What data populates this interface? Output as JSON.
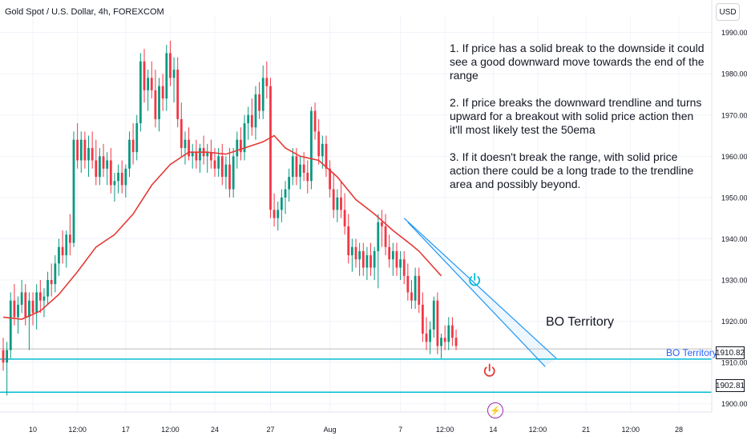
{
  "header": {
    "title": "Gold Spot / U.S. Dollar, 4h, FOREXCOM",
    "currency": "USD"
  },
  "notes": [
    "1. If price has a solid break to the downside it could see a good downward move towards the end of the range",
    "2. If price breaks the downward trendline and turns upward for a breakout with solid price action then it'll most likely test the 50ema",
    "3. If it doesn't break the range, with solid price action there could be a long trade to the trendline area and possibly beyond."
  ],
  "annotations": {
    "bo_territory_text": "BO Territory",
    "bo_line_label": "BO Territory",
    "bo_line_price": "1910.82",
    "lower_line_price": "1902.81"
  },
  "icons": [
    "power-icon",
    "power-icon",
    "lightning-icon"
  ],
  "chart_data": {
    "type": "candlestick",
    "symbol": "XAUUSD",
    "timeframe": "4h",
    "y_ticks": [
      1900,
      1910,
      1920,
      1930,
      1940,
      1950,
      1960,
      1970,
      1980,
      1990
    ],
    "y_tick_labels": [
      "1900.00",
      "1910.00",
      "1920.00",
      "1930.00",
      "1940.00",
      "1950.00",
      "1960.00",
      "1970.00",
      "1980.00",
      "1990.00"
    ],
    "ylim": [
      1898,
      1994
    ],
    "x_ticks": [
      {
        "label": "10",
        "bar": 8
      },
      {
        "label": "12:00",
        "bar": 20
      },
      {
        "label": "17",
        "bar": 33
      },
      {
        "label": "12:00",
        "bar": 45
      },
      {
        "label": "24",
        "bar": 57
      },
      {
        "label": "27",
        "bar": 72
      },
      {
        "label": "Aug",
        "bar": 88
      },
      {
        "label": "7",
        "bar": 107
      },
      {
        "label": "12:00",
        "bar": 119
      },
      {
        "label": "14",
        "bar": 132
      },
      {
        "label": "12:00",
        "bar": 144
      },
      {
        "label": "21",
        "bar": 157
      },
      {
        "label": "12:00",
        "bar": 169
      },
      {
        "label": "28",
        "bar": 182
      }
    ],
    "xlim_bars": [
      0,
      190
    ],
    "candles": [
      {
        "o": 1913,
        "h": 1916,
        "l": 1908,
        "c": 1910
      },
      {
        "o": 1910,
        "h": 1915,
        "l": 1902,
        "c": 1913
      },
      {
        "o": 1913,
        "h": 1927,
        "l": 1911,
        "c": 1925
      },
      {
        "o": 1925,
        "h": 1929,
        "l": 1919,
        "c": 1921
      },
      {
        "o": 1921,
        "h": 1926,
        "l": 1917,
        "c": 1924
      },
      {
        "o": 1924,
        "h": 1930,
        "l": 1922,
        "c": 1927
      },
      {
        "o": 1927,
        "h": 1929,
        "l": 1919,
        "c": 1921
      },
      {
        "o": 1921,
        "h": 1927,
        "l": 1913,
        "c": 1925
      },
      {
        "o": 1925,
        "h": 1927,
        "l": 1919,
        "c": 1922
      },
      {
        "o": 1922,
        "h": 1929,
        "l": 1918,
        "c": 1927
      },
      {
        "o": 1927,
        "h": 1930,
        "l": 1922,
        "c": 1925
      },
      {
        "o": 1925,
        "h": 1928,
        "l": 1921,
        "c": 1926
      },
      {
        "o": 1926,
        "h": 1932,
        "l": 1924,
        "c": 1930
      },
      {
        "o": 1930,
        "h": 1934,
        "l": 1926,
        "c": 1929
      },
      {
        "o": 1929,
        "h": 1936,
        "l": 1927,
        "c": 1934
      },
      {
        "o": 1934,
        "h": 1940,
        "l": 1931,
        "c": 1938
      },
      {
        "o": 1938,
        "h": 1942,
        "l": 1934,
        "c": 1936
      },
      {
        "o": 1936,
        "h": 1942,
        "l": 1933,
        "c": 1941
      },
      {
        "o": 1941,
        "h": 1946,
        "l": 1936,
        "c": 1939
      },
      {
        "o": 1939,
        "h": 1966,
        "l": 1938,
        "c": 1964
      },
      {
        "o": 1964,
        "h": 1968,
        "l": 1957,
        "c": 1959
      },
      {
        "o": 1959,
        "h": 1966,
        "l": 1956,
        "c": 1964
      },
      {
        "o": 1964,
        "h": 1966,
        "l": 1957,
        "c": 1959
      },
      {
        "o": 1959,
        "h": 1965,
        "l": 1955,
        "c": 1962
      },
      {
        "o": 1962,
        "h": 1966,
        "l": 1957,
        "c": 1959
      },
      {
        "o": 1959,
        "h": 1964,
        "l": 1953,
        "c": 1955
      },
      {
        "o": 1955,
        "h": 1962,
        "l": 1953,
        "c": 1960
      },
      {
        "o": 1960,
        "h": 1963,
        "l": 1955,
        "c": 1957
      },
      {
        "o": 1957,
        "h": 1961,
        "l": 1953,
        "c": 1959
      },
      {
        "o": 1959,
        "h": 1962,
        "l": 1951,
        "c": 1953
      },
      {
        "o": 1953,
        "h": 1956,
        "l": 1949,
        "c": 1954
      },
      {
        "o": 1954,
        "h": 1958,
        "l": 1951,
        "c": 1956
      },
      {
        "o": 1956,
        "h": 1959,
        "l": 1951,
        "c": 1953
      },
      {
        "o": 1953,
        "h": 1958,
        "l": 1950,
        "c": 1957
      },
      {
        "o": 1957,
        "h": 1966,
        "l": 1955,
        "c": 1964
      },
      {
        "o": 1964,
        "h": 1968,
        "l": 1958,
        "c": 1961
      },
      {
        "o": 1961,
        "h": 1970,
        "l": 1959,
        "c": 1968
      },
      {
        "o": 1968,
        "h": 1985,
        "l": 1966,
        "c": 1983
      },
      {
        "o": 1983,
        "h": 1986,
        "l": 1973,
        "c": 1976
      },
      {
        "o": 1976,
        "h": 1981,
        "l": 1971,
        "c": 1979
      },
      {
        "o": 1979,
        "h": 1983,
        "l": 1974,
        "c": 1976
      },
      {
        "o": 1976,
        "h": 1981,
        "l": 1967,
        "c": 1969
      },
      {
        "o": 1969,
        "h": 1979,
        "l": 1966,
        "c": 1977
      },
      {
        "o": 1977,
        "h": 1980,
        "l": 1971,
        "c": 1974
      },
      {
        "o": 1974,
        "h": 1987,
        "l": 1971,
        "c": 1985
      },
      {
        "o": 1985,
        "h": 1988,
        "l": 1977,
        "c": 1979
      },
      {
        "o": 1979,
        "h": 1984,
        "l": 1973,
        "c": 1981
      },
      {
        "o": 1981,
        "h": 1984,
        "l": 1967,
        "c": 1969
      },
      {
        "o": 1969,
        "h": 1973,
        "l": 1960,
        "c": 1962
      },
      {
        "o": 1962,
        "h": 1966,
        "l": 1958,
        "c": 1964
      },
      {
        "o": 1964,
        "h": 1967,
        "l": 1959,
        "c": 1960
      },
      {
        "o": 1960,
        "h": 1963,
        "l": 1957,
        "c": 1961
      },
      {
        "o": 1961,
        "h": 1964,
        "l": 1957,
        "c": 1959
      },
      {
        "o": 1959,
        "h": 1963,
        "l": 1956,
        "c": 1962
      },
      {
        "o": 1962,
        "h": 1965,
        "l": 1958,
        "c": 1960
      },
      {
        "o": 1960,
        "h": 1963,
        "l": 1956,
        "c": 1961
      },
      {
        "o": 1961,
        "h": 1964,
        "l": 1957,
        "c": 1959
      },
      {
        "o": 1959,
        "h": 1962,
        "l": 1955,
        "c": 1957
      },
      {
        "o": 1957,
        "h": 1962,
        "l": 1955,
        "c": 1960
      },
      {
        "o": 1960,
        "h": 1963,
        "l": 1953,
        "c": 1955
      },
      {
        "o": 1955,
        "h": 1960,
        "l": 1952,
        "c": 1958
      },
      {
        "o": 1958,
        "h": 1962,
        "l": 1950,
        "c": 1952
      },
      {
        "o": 1952,
        "h": 1962,
        "l": 1950,
        "c": 1960
      },
      {
        "o": 1960,
        "h": 1966,
        "l": 1957,
        "c": 1964
      },
      {
        "o": 1964,
        "h": 1967,
        "l": 1959,
        "c": 1961
      },
      {
        "o": 1961,
        "h": 1970,
        "l": 1959,
        "c": 1968
      },
      {
        "o": 1968,
        "h": 1972,
        "l": 1964,
        "c": 1970
      },
      {
        "o": 1970,
        "h": 1974,
        "l": 1965,
        "c": 1967
      },
      {
        "o": 1967,
        "h": 1977,
        "l": 1964,
        "c": 1975
      },
      {
        "o": 1975,
        "h": 1978,
        "l": 1969,
        "c": 1971
      },
      {
        "o": 1971,
        "h": 1982,
        "l": 1969,
        "c": 1979
      },
      {
        "o": 1979,
        "h": 1983,
        "l": 1974,
        "c": 1977
      },
      {
        "o": 1977,
        "h": 1979,
        "l": 1945,
        "c": 1947
      },
      {
        "o": 1947,
        "h": 1951,
        "l": 1943,
        "c": 1945
      },
      {
        "o": 1945,
        "h": 1949,
        "l": 1942,
        "c": 1947
      },
      {
        "o": 1947,
        "h": 1952,
        "l": 1944,
        "c": 1950
      },
      {
        "o": 1950,
        "h": 1954,
        "l": 1946,
        "c": 1952
      },
      {
        "o": 1952,
        "h": 1957,
        "l": 1949,
        "c": 1955
      },
      {
        "o": 1955,
        "h": 1962,
        "l": 1953,
        "c": 1960
      },
      {
        "o": 1960,
        "h": 1962,
        "l": 1953,
        "c": 1955
      },
      {
        "o": 1955,
        "h": 1960,
        "l": 1952,
        "c": 1958
      },
      {
        "o": 1958,
        "h": 1961,
        "l": 1954,
        "c": 1956
      },
      {
        "o": 1956,
        "h": 1959,
        "l": 1951,
        "c": 1954
      },
      {
        "o": 1954,
        "h": 1972,
        "l": 1952,
        "c": 1971
      },
      {
        "o": 1971,
        "h": 1973,
        "l": 1964,
        "c": 1966
      },
      {
        "o": 1966,
        "h": 1969,
        "l": 1958,
        "c": 1960
      },
      {
        "o": 1960,
        "h": 1965,
        "l": 1957,
        "c": 1963
      },
      {
        "o": 1963,
        "h": 1965,
        "l": 1955,
        "c": 1957
      },
      {
        "o": 1957,
        "h": 1959,
        "l": 1950,
        "c": 1952
      },
      {
        "o": 1952,
        "h": 1956,
        "l": 1945,
        "c": 1947
      },
      {
        "o": 1947,
        "h": 1952,
        "l": 1944,
        "c": 1950
      },
      {
        "o": 1950,
        "h": 1954,
        "l": 1945,
        "c": 1947
      },
      {
        "o": 1947,
        "h": 1951,
        "l": 1941,
        "c": 1943
      },
      {
        "o": 1943,
        "h": 1946,
        "l": 1934,
        "c": 1936
      },
      {
        "o": 1936,
        "h": 1940,
        "l": 1932,
        "c": 1938
      },
      {
        "o": 1938,
        "h": 1940,
        "l": 1933,
        "c": 1935
      },
      {
        "o": 1935,
        "h": 1939,
        "l": 1931,
        "c": 1937
      },
      {
        "o": 1937,
        "h": 1939,
        "l": 1931,
        "c": 1933
      },
      {
        "o": 1933,
        "h": 1938,
        "l": 1930,
        "c": 1936
      },
      {
        "o": 1936,
        "h": 1939,
        "l": 1931,
        "c": 1933
      },
      {
        "o": 1933,
        "h": 1938,
        "l": 1930,
        "c": 1937
      },
      {
        "o": 1937,
        "h": 1946,
        "l": 1928,
        "c": 1944
      },
      {
        "o": 1944,
        "h": 1947,
        "l": 1938,
        "c": 1943
      },
      {
        "o": 1943,
        "h": 1946,
        "l": 1936,
        "c": 1938
      },
      {
        "o": 1938,
        "h": 1941,
        "l": 1933,
        "c": 1935
      },
      {
        "o": 1935,
        "h": 1939,
        "l": 1931,
        "c": 1937
      },
      {
        "o": 1937,
        "h": 1939,
        "l": 1931,
        "c": 1933
      },
      {
        "o": 1933,
        "h": 1937,
        "l": 1930,
        "c": 1935
      },
      {
        "o": 1935,
        "h": 1937,
        "l": 1929,
        "c": 1931
      },
      {
        "o": 1931,
        "h": 1934,
        "l": 1925,
        "c": 1927
      },
      {
        "o": 1927,
        "h": 1930,
        "l": 1923,
        "c": 1925
      },
      {
        "o": 1925,
        "h": 1933,
        "l": 1923,
        "c": 1931
      },
      {
        "o": 1931,
        "h": 1933,
        "l": 1922,
        "c": 1924
      },
      {
        "o": 1924,
        "h": 1927,
        "l": 1915,
        "c": 1917
      },
      {
        "o": 1917,
        "h": 1921,
        "l": 1913,
        "c": 1915
      },
      {
        "o": 1915,
        "h": 1920,
        "l": 1912,
        "c": 1918
      },
      {
        "o": 1918,
        "h": 1926,
        "l": 1916,
        "c": 1925
      },
      {
        "o": 1925,
        "h": 1927,
        "l": 1912,
        "c": 1914
      },
      {
        "o": 1914,
        "h": 1917,
        "l": 1911,
        "c": 1916
      },
      {
        "o": 1916,
        "h": 1919,
        "l": 1913,
        "c": 1915
      },
      {
        "o": 1915,
        "h": 1921,
        "l": 1913,
        "c": 1919
      },
      {
        "o": 1919,
        "h": 1921,
        "l": 1914,
        "c": 1916
      },
      {
        "o": 1916,
        "h": 1918,
        "l": 1913,
        "c": 1914
      }
    ],
    "ema": {
      "name": "50ema",
      "color": "#e53935",
      "points": [
        [
          0,
          1921
        ],
        [
          5,
          1920.5
        ],
        [
          10,
          1922.5
        ],
        [
          15,
          1926.5
        ],
        [
          20,
          1932
        ],
        [
          25,
          1938
        ],
        [
          30,
          1941
        ],
        [
          35,
          1946
        ],
        [
          40,
          1953
        ],
        [
          45,
          1958
        ],
        [
          50,
          1961
        ],
        [
          55,
          1961
        ],
        [
          60,
          1960.5
        ],
        [
          65,
          1962
        ],
        [
          70,
          1963.5
        ],
        [
          73,
          1965
        ],
        [
          76,
          1962
        ],
        [
          80,
          1960
        ],
        [
          85,
          1959
        ],
        [
          90,
          1955
        ],
        [
          95,
          1949.5
        ],
        [
          100,
          1946
        ],
        [
          105,
          1942
        ],
        [
          110,
          1938.5
        ],
        [
          112,
          1937
        ],
        [
          115,
          1934
        ],
        [
          118,
          1931
        ]
      ]
    },
    "trendline_channel": {
      "color": "#2196f3",
      "upper": [
        [
          108,
          1945
        ],
        [
          149,
          1911
        ]
      ],
      "lower": [
        [
          109,
          1944
        ],
        [
          146,
          1909
        ]
      ]
    },
    "levels": [
      {
        "label": "BO Territory",
        "price": 1910.82,
        "color": "#00bcd4"
      },
      {
        "price": 1902.81,
        "color": "#00bcd4"
      },
      {
        "price": 1913.3,
        "color": "#bdbdbd"
      }
    ],
    "markers": [
      {
        "icon": "power-icon",
        "bar": 127,
        "price": 1930,
        "color": "#00bcd4"
      },
      {
        "icon": "power-icon",
        "bar": 131,
        "price": 1908,
        "color": "#e53935"
      }
    ],
    "colors": {
      "up": "#089981",
      "down": "#f23645"
    }
  }
}
